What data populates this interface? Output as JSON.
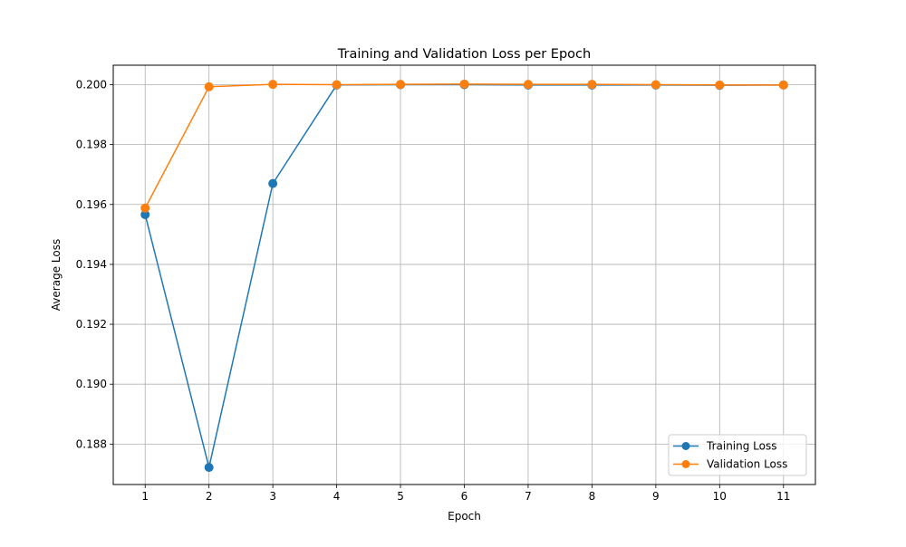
{
  "chart_data": {
    "type": "line",
    "title": "Training and Validation Loss per Epoch",
    "xlabel": "Epoch",
    "ylabel": "Average Loss",
    "x": [
      1,
      2,
      3,
      4,
      5,
      6,
      7,
      8,
      9,
      10,
      11
    ],
    "xlim": [
      0.5,
      11.5
    ],
    "ylim": [
      0.18665,
      0.20065
    ],
    "x_ticks": [
      1,
      2,
      3,
      4,
      5,
      6,
      7,
      8,
      9,
      10,
      11
    ],
    "y_ticks": [
      0.188,
      0.19,
      0.192,
      0.194,
      0.196,
      0.198,
      0.2
    ],
    "y_tick_labels": [
      "0.188",
      "0.190",
      "0.192",
      "0.194",
      "0.196",
      "0.198",
      "0.200"
    ],
    "grid": true,
    "legend_position": "bottom-right",
    "series": [
      {
        "name": "Training Loss",
        "color": "#1f77b4",
        "marker": "circle",
        "values": [
          0.19566,
          0.18722,
          0.1967,
          0.19999,
          0.2,
          0.2,
          0.19999,
          0.19999,
          0.19999,
          0.19998,
          0.19999
        ]
      },
      {
        "name": "Validation Loss",
        "color": "#ff7f0e",
        "marker": "circle",
        "values": [
          0.19588,
          0.19993,
          0.20001,
          0.2,
          0.20001,
          0.20002,
          0.20001,
          0.20001,
          0.2,
          0.19999,
          0.19999
        ]
      }
    ]
  }
}
